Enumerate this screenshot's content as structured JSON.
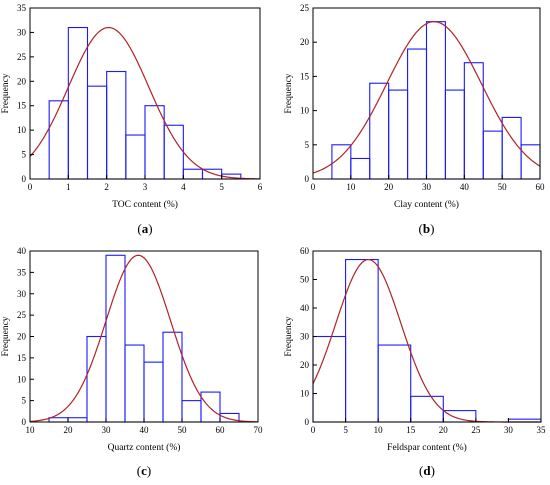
{
  "chart_data": [
    {
      "id": "a",
      "type": "bar",
      "caption_letter": "a",
      "title": "",
      "xlabel": "TOC content (%)",
      "ylabel": "Frequency",
      "xlim": [
        0,
        6
      ],
      "ylim": [
        0,
        35
      ],
      "xticks": [
        0,
        1,
        2,
        3,
        4,
        5,
        6
      ],
      "yticks": [
        0,
        5,
        10,
        15,
        20,
        25,
        30,
        35
      ],
      "bin_edges": [
        0.5,
        1.0,
        1.5,
        2.0,
        2.5,
        3.0,
        3.5,
        4.0,
        4.5,
        5.0,
        5.5
      ],
      "values": [
        16,
        31,
        19,
        22,
        9,
        15,
        11,
        2,
        2,
        1
      ],
      "normal_fit": {
        "mean": 2.05,
        "sd": 1.05,
        "peak": 31
      },
      "bar_color": "#1a1aff",
      "curve_color": "#b22222"
    },
    {
      "id": "b",
      "type": "bar",
      "caption_letter": "b",
      "title": "",
      "xlabel": "Clay content (%)",
      "ylabel": "Frequency",
      "xlim": [
        0,
        60
      ],
      "ylim": [
        0,
        25
      ],
      "xticks": [
        0,
        10,
        20,
        30,
        40,
        50,
        60
      ],
      "yticks": [
        0,
        5,
        10,
        15,
        20,
        25
      ],
      "bin_edges": [
        5,
        10,
        15,
        20,
        25,
        30,
        35,
        40,
        45,
        50,
        55,
        60
      ],
      "values": [
        5,
        3,
        14,
        13,
        19,
        23,
        13,
        17,
        7,
        9,
        5
      ],
      "normal_fit": {
        "mean": 32,
        "sd": 12.5,
        "peak": 23
      },
      "bar_color": "#1a1aff",
      "curve_color": "#b22222"
    },
    {
      "id": "c",
      "type": "bar",
      "caption_letter": "c",
      "title": "",
      "xlabel": "Quartz content (%)",
      "ylabel": "Frequency",
      "xlim": [
        10,
        70
      ],
      "ylim": [
        0,
        40
      ],
      "xticks": [
        10,
        20,
        30,
        40,
        50,
        60,
        70
      ],
      "yticks": [
        0,
        5,
        10,
        15,
        20,
        25,
        30,
        35,
        40
      ],
      "bin_edges": [
        15,
        20,
        25,
        30,
        35,
        40,
        45,
        50,
        55,
        60,
        65
      ],
      "values": [
        1,
        1,
        20,
        39,
        18,
        14,
        21,
        5,
        7,
        2
      ],
      "normal_fit": {
        "mean": 38.5,
        "sd": 8.5,
        "peak": 39
      },
      "bar_color": "#1a1aff",
      "curve_color": "#b22222"
    },
    {
      "id": "d",
      "type": "bar",
      "caption_letter": "d",
      "title": "",
      "xlabel": "Feldspar content (%)",
      "ylabel": "Frequency",
      "xlim": [
        0,
        35
      ],
      "ylim": [
        0,
        60
      ],
      "xticks": [
        0,
        5,
        10,
        15,
        20,
        25,
        30,
        35
      ],
      "yticks": [
        0,
        10,
        20,
        30,
        40,
        50,
        60
      ],
      "bin_edges": [
        0,
        5,
        10,
        15,
        20,
        25,
        30,
        35
      ],
      "values": [
        30,
        57,
        27,
        9,
        4,
        0,
        1
      ],
      "normal_fit": {
        "mean": 8.5,
        "sd": 5.0,
        "peak": 57
      },
      "bar_color": "#1a1aff",
      "curve_color": "#b22222"
    }
  ]
}
